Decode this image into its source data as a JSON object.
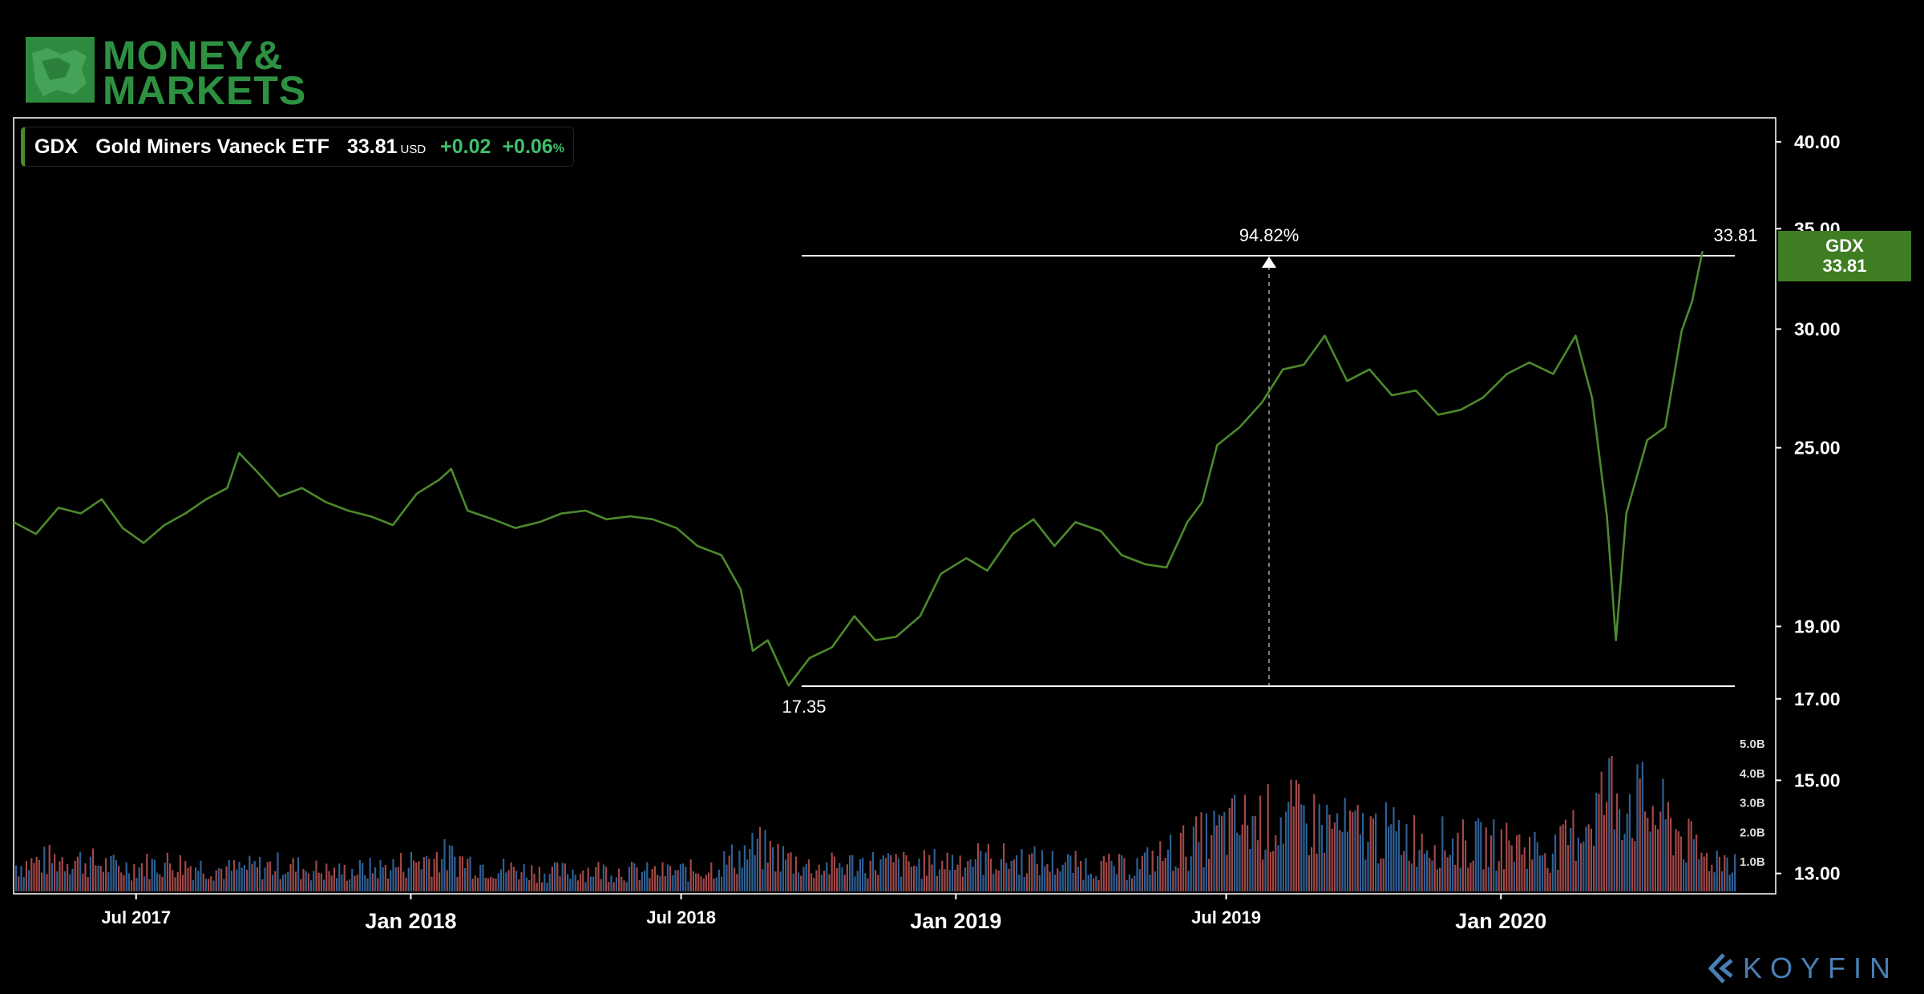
{
  "brand": {
    "logo_line1": "MONEY&",
    "logo_line2": "MARKETS",
    "logo_color": "#2e9142",
    "footer": "KOYFIN",
    "footer_color": "#4a7fb5"
  },
  "legend": {
    "ticker": "GDX",
    "name": "Gold Miners Vaneck ETF",
    "price": "33.81",
    "currency": "USD",
    "change": "+0.02",
    "change_pct": "+0.06",
    "pct_sign": "%"
  },
  "price_tag": {
    "ticker": "GDX",
    "price": "33.81",
    "color": "#3f7d22"
  },
  "annotations": {
    "range_pct": "94.82%",
    "high_label": "33.81",
    "low_label": "17.35",
    "high": 33.81,
    "low": 17.35,
    "high_date": "2020-05-15",
    "low_date": "2018-09-11",
    "pct_date": "2019-07-01"
  },
  "chart_data": {
    "type": "line",
    "title": "",
    "xlabel": "",
    "ylabel": "",
    "line_color": "#4c8a2c",
    "y_scale": "log",
    "ylim": [
      12.6,
      41.5
    ],
    "xlim": [
      "2017-04-10",
      "2020-07-03"
    ],
    "grid": false,
    "y_ticks": [
      "40.00",
      "35.00",
      "30.00",
      "25.00",
      "19.00",
      "17.00",
      "15.00",
      "13.00"
    ],
    "x_ticks": [
      {
        "label": "Jul 2017",
        "date": "2017-07-01",
        "major": false
      },
      {
        "label": "Jan 2018",
        "date": "2018-01-01",
        "major": true
      },
      {
        "label": "Jul 2018",
        "date": "2018-07-01",
        "major": false
      },
      {
        "label": "Jan 2019",
        "date": "2019-01-01",
        "major": true
      },
      {
        "label": "Jul 2019",
        "date": "2019-07-01",
        "major": false
      },
      {
        "label": "Jan 2020",
        "date": "2020-01-01",
        "major": true
      }
    ],
    "series": [
      {
        "name": "GDX",
        "points": [
          [
            "2017-04-10",
            22.3
          ],
          [
            "2017-04-25",
            21.9
          ],
          [
            "2017-05-10",
            22.8
          ],
          [
            "2017-05-25",
            22.6
          ],
          [
            "2017-06-08",
            23.1
          ],
          [
            "2017-06-22",
            22.1
          ],
          [
            "2017-07-06",
            21.6
          ],
          [
            "2017-07-20",
            22.2
          ],
          [
            "2017-08-03",
            22.6
          ],
          [
            "2017-08-17",
            23.1
          ],
          [
            "2017-08-31",
            23.5
          ],
          [
            "2017-09-08",
            24.8
          ],
          [
            "2017-09-20",
            24.1
          ],
          [
            "2017-10-05",
            23.2
          ],
          [
            "2017-10-20",
            23.5
          ],
          [
            "2017-11-05",
            23.0
          ],
          [
            "2017-11-20",
            22.7
          ],
          [
            "2017-12-05",
            22.5
          ],
          [
            "2017-12-20",
            22.2
          ],
          [
            "2018-01-05",
            23.3
          ],
          [
            "2018-01-20",
            23.8
          ],
          [
            "2018-01-28",
            24.2
          ],
          [
            "2018-02-08",
            22.7
          ],
          [
            "2018-02-25",
            22.4
          ],
          [
            "2018-03-12",
            22.1
          ],
          [
            "2018-03-28",
            22.3
          ],
          [
            "2018-04-12",
            22.6
          ],
          [
            "2018-04-28",
            22.7
          ],
          [
            "2018-05-12",
            22.4
          ],
          [
            "2018-05-28",
            22.5
          ],
          [
            "2018-06-12",
            22.4
          ],
          [
            "2018-06-28",
            22.1
          ],
          [
            "2018-07-12",
            21.5
          ],
          [
            "2018-07-28",
            21.2
          ],
          [
            "2018-08-10",
            20.1
          ],
          [
            "2018-08-18",
            18.3
          ],
          [
            "2018-08-28",
            18.6
          ],
          [
            "2018-09-11",
            17.35
          ],
          [
            "2018-09-25",
            18.1
          ],
          [
            "2018-10-10",
            18.4
          ],
          [
            "2018-10-25",
            19.3
          ],
          [
            "2018-11-08",
            18.6
          ],
          [
            "2018-11-22",
            18.7
          ],
          [
            "2018-12-08",
            19.3
          ],
          [
            "2018-12-22",
            20.6
          ],
          [
            "2019-01-08",
            21.1
          ],
          [
            "2019-01-22",
            20.7
          ],
          [
            "2019-02-08",
            21.9
          ],
          [
            "2019-02-22",
            22.4
          ],
          [
            "2019-03-08",
            21.5
          ],
          [
            "2019-03-22",
            22.3
          ],
          [
            "2019-04-08",
            22.0
          ],
          [
            "2019-04-22",
            21.2
          ],
          [
            "2019-05-08",
            20.9
          ],
          [
            "2019-05-22",
            20.8
          ],
          [
            "2019-06-05",
            22.3
          ],
          [
            "2019-06-15",
            23.0
          ],
          [
            "2019-06-25",
            25.1
          ],
          [
            "2019-07-10",
            25.8
          ],
          [
            "2019-07-25",
            26.8
          ],
          [
            "2019-08-08",
            28.2
          ],
          [
            "2019-08-22",
            28.4
          ],
          [
            "2019-09-05",
            29.7
          ],
          [
            "2019-09-20",
            27.7
          ],
          [
            "2019-10-05",
            28.2
          ],
          [
            "2019-10-20",
            27.1
          ],
          [
            "2019-11-05",
            27.3
          ],
          [
            "2019-11-20",
            26.3
          ],
          [
            "2019-12-05",
            26.5
          ],
          [
            "2019-12-20",
            27.0
          ],
          [
            "2020-01-05",
            28.0
          ],
          [
            "2020-01-20",
            28.5
          ],
          [
            "2020-02-05",
            28.0
          ],
          [
            "2020-02-20",
            29.7
          ],
          [
            "2020-03-02",
            27.0
          ],
          [
            "2020-03-12",
            22.5
          ],
          [
            "2020-03-18",
            18.6
          ],
          [
            "2020-03-25",
            22.6
          ],
          [
            "2020-04-08",
            25.3
          ],
          [
            "2020-04-20",
            25.8
          ],
          [
            "2020-05-01",
            29.9
          ],
          [
            "2020-05-08",
            31.3
          ],
          [
            "2020-05-15",
            33.81
          ]
        ]
      }
    ],
    "volume": {
      "y_ticks": [
        "5.0B",
        "4.0B",
        "3.0B",
        "2.0B",
        "1.0B"
      ],
      "ylim": [
        0,
        5.0
      ],
      "unit": "B",
      "colors": {
        "up": "#2f5f93",
        "down": "#a04848"
      },
      "bars": [
        [
          "2017-04-10",
          1.1
        ],
        [
          "2017-05-15",
          1.4
        ],
        [
          "2017-06-20",
          1.0
        ],
        [
          "2017-07-25",
          1.2
        ],
        [
          "2017-08-30",
          0.9
        ],
        [
          "2017-10-05",
          1.1
        ],
        [
          "2017-11-10",
          0.8
        ],
        [
          "2017-12-15",
          1.0
        ],
        [
          "2018-01-20",
          1.5
        ],
        [
          "2018-02-25",
          1.0
        ],
        [
          "2018-04-01",
          0.8
        ],
        [
          "2018-05-06",
          0.9
        ],
        [
          "2018-06-11",
          0.8
        ],
        [
          "2018-07-16",
          0.9
        ],
        [
          "2018-08-21",
          1.8
        ],
        [
          "2018-09-26",
          1.0
        ],
        [
          "2018-11-01",
          1.2
        ],
        [
          "2018-12-06",
          1.1
        ],
        [
          "2019-01-11",
          1.4
        ],
        [
          "2019-02-16",
          1.3
        ],
        [
          "2019-03-23",
          1.1
        ],
        [
          "2019-04-28",
          1.0
        ],
        [
          "2019-06-03",
          1.9
        ],
        [
          "2019-07-08",
          2.8
        ],
        [
          "2019-08-13",
          3.1
        ],
        [
          "2019-09-18",
          2.6
        ],
        [
          "2019-10-23",
          2.4
        ],
        [
          "2019-11-28",
          2.0
        ],
        [
          "2020-01-03",
          2.0
        ],
        [
          "2020-02-08",
          1.7
        ],
        [
          "2020-03-15",
          4.3
        ],
        [
          "2020-04-20",
          3.0
        ],
        [
          "2020-05-15",
          1.4
        ]
      ]
    }
  }
}
